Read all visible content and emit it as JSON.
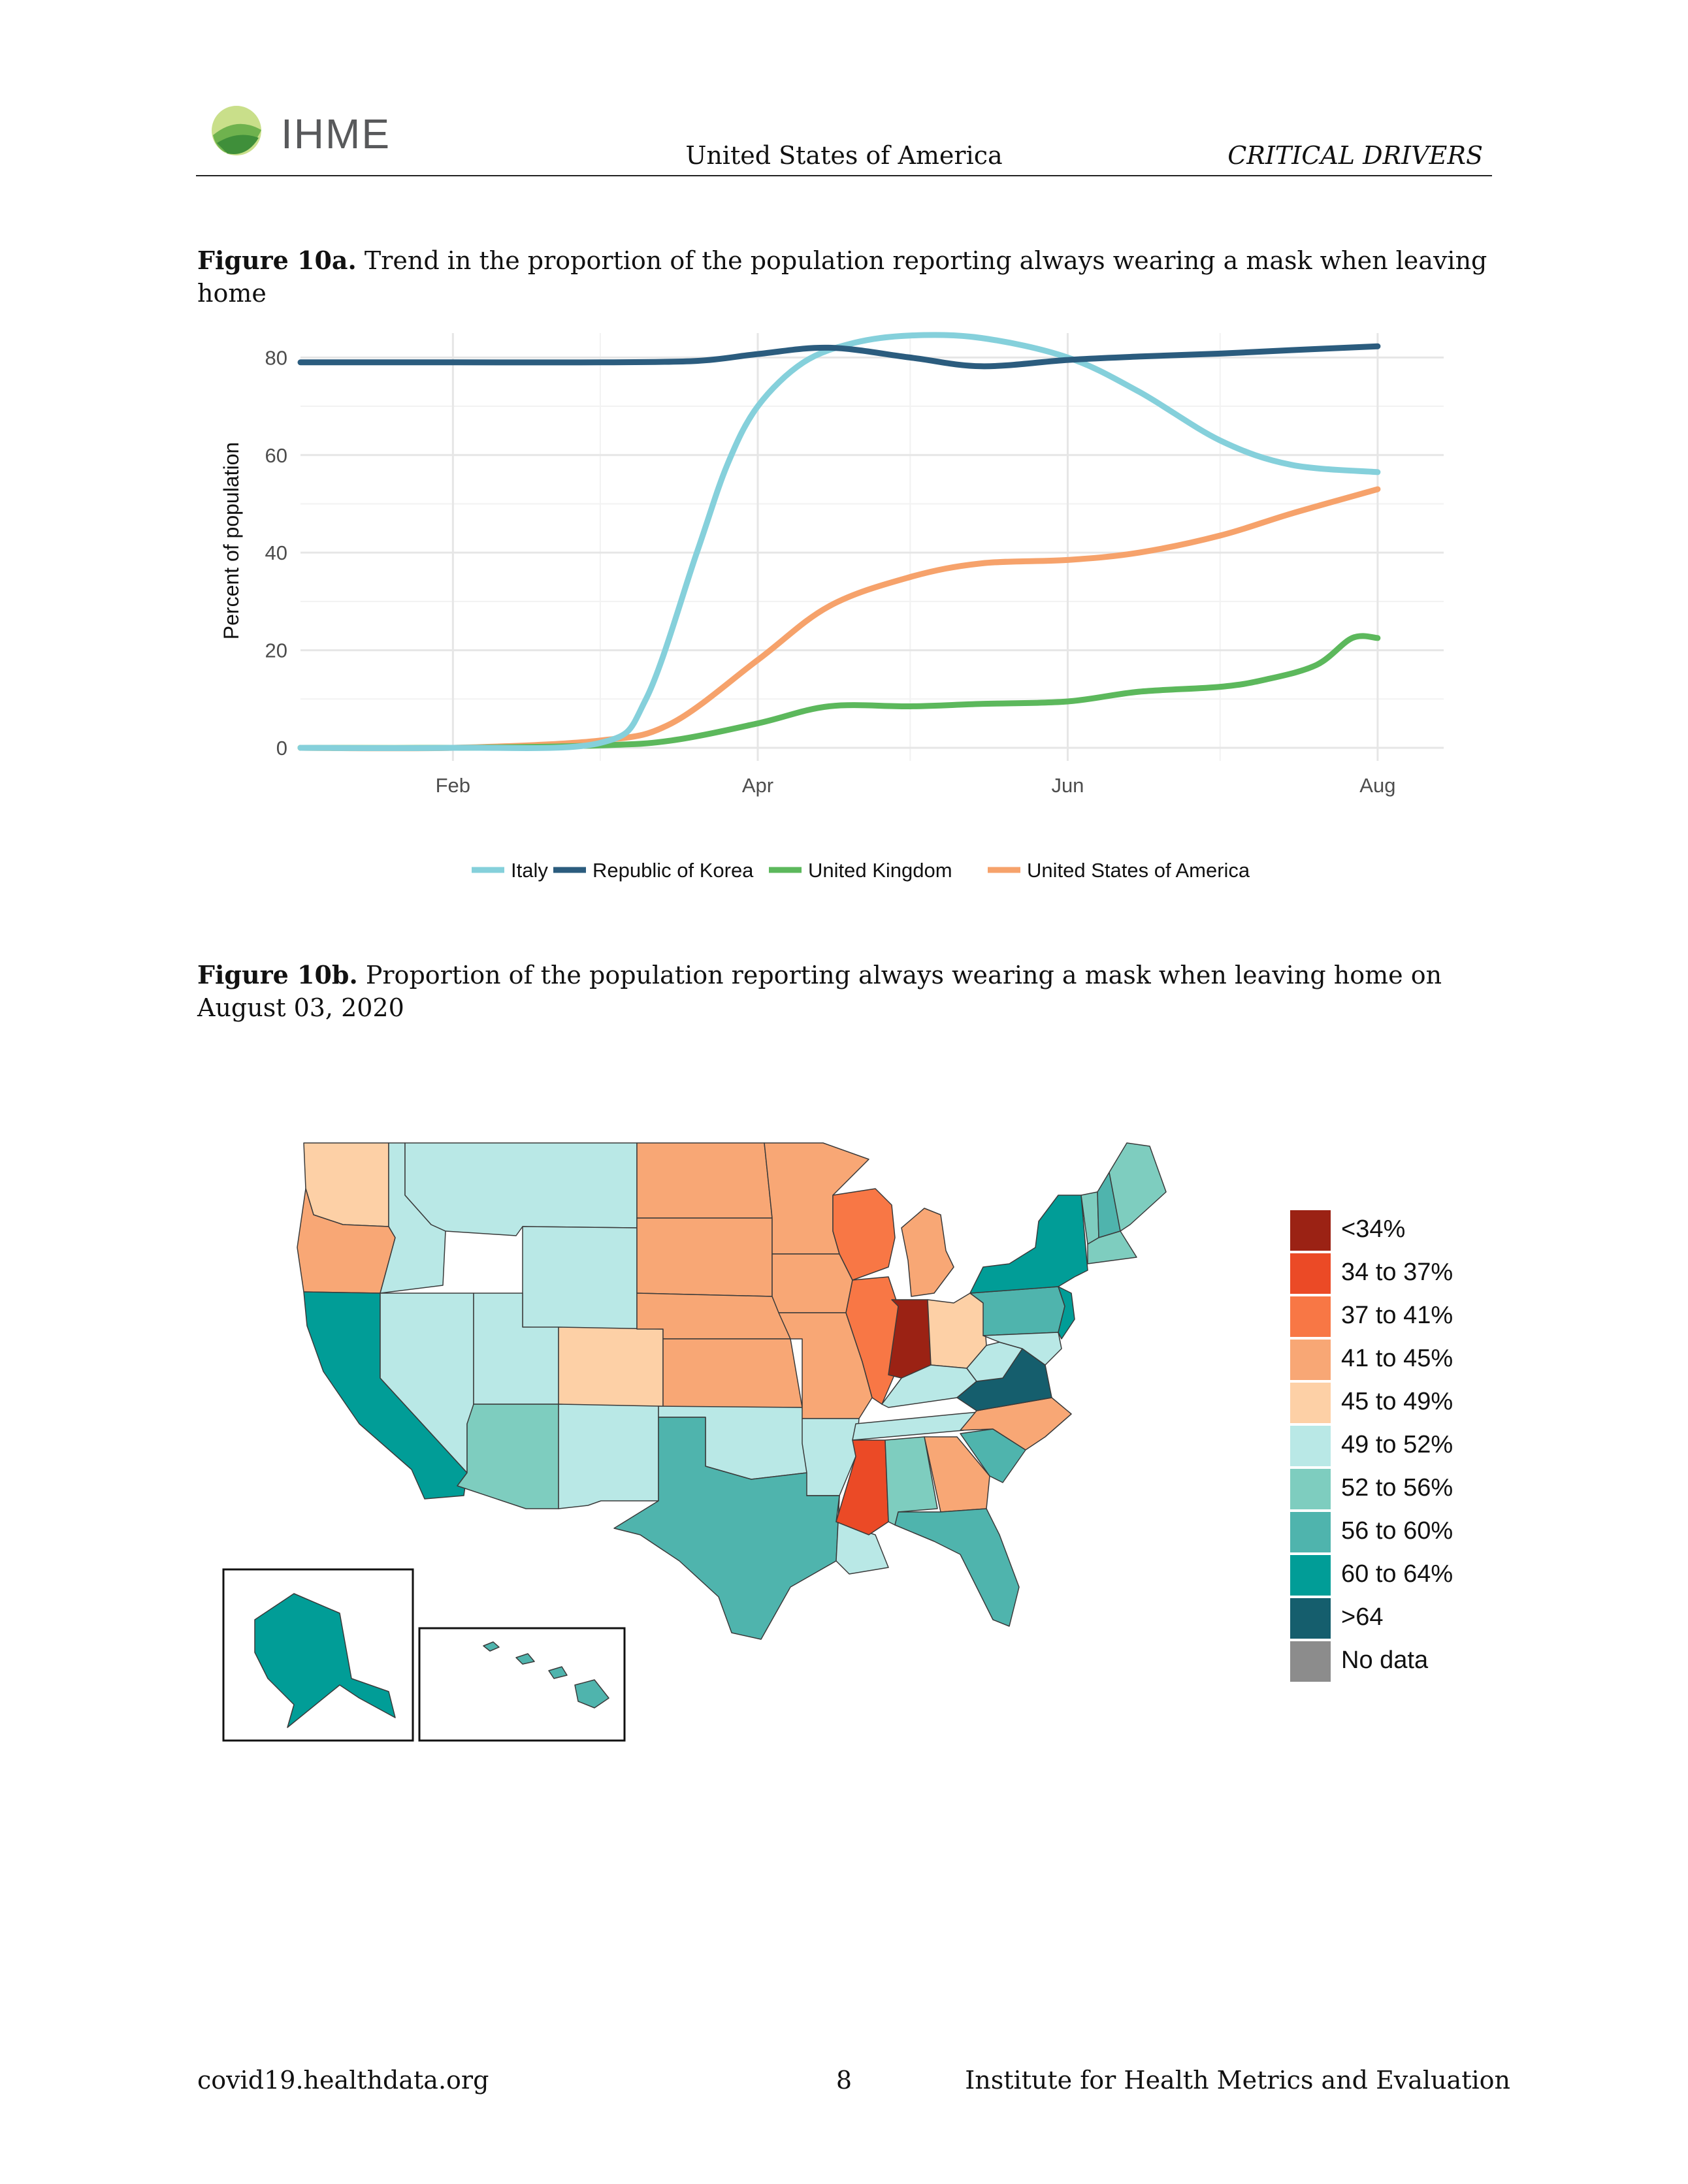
{
  "header": {
    "logo_text": "IHME",
    "country": "United States of America",
    "section": "CRITICAL DRIVERS"
  },
  "figure_a": {
    "label": "Figure 10a.",
    "text": "Trend in the proportion of the population reporting always wearing a mask when leaving home"
  },
  "figure_b": {
    "label": "Figure 10b.",
    "text": "Proportion of the population reporting always wearing a mask when leaving home on August 03, 2020"
  },
  "chart_data": [
    {
      "type": "line",
      "title": "",
      "xlabel": "",
      "ylabel": "Percent of population",
      "ylim": [
        0,
        85
      ],
      "yticks": [
        0,
        20,
        40,
        60,
        80
      ],
      "xticks": [
        {
          "x": "2020-02-01",
          "label": "Feb"
        },
        {
          "x": "2020-04-01",
          "label": "Apr"
        },
        {
          "x": "2020-06-01",
          "label": "Jun"
        },
        {
          "x": "2020-08-01",
          "label": "Aug"
        }
      ],
      "xlim": [
        "2020-01-02",
        "2020-08-14"
      ],
      "grid": true,
      "legend_position": "bottom",
      "series": [
        {
          "name": "Italy",
          "color": "#85d0db",
          "x": [
            "2020-01-02",
            "2020-02-01",
            "2020-03-01",
            "2020-03-10",
            "2020-03-20",
            "2020-03-26",
            "2020-04-01",
            "2020-04-10",
            "2020-04-20",
            "2020-05-01",
            "2020-05-15",
            "2020-06-01",
            "2020-06-15",
            "2020-07-01",
            "2020-07-15",
            "2020-08-01"
          ],
          "y": [
            0,
            0,
            1,
            10,
            40,
            58,
            70,
            79,
            83,
            84.5,
            84,
            80,
            73,
            63,
            58,
            56.5
          ]
        },
        {
          "name": "Republic of Korea",
          "color": "#2b5c7e",
          "x": [
            "2020-01-02",
            "2020-02-01",
            "2020-03-01",
            "2020-03-20",
            "2020-04-01",
            "2020-04-15",
            "2020-05-01",
            "2020-05-15",
            "2020-06-01",
            "2020-06-15",
            "2020-07-01",
            "2020-07-15",
            "2020-08-01"
          ],
          "y": [
            79,
            79,
            79,
            79.3,
            80.7,
            82,
            80,
            78.2,
            79.5,
            80.2,
            80.8,
            81.5,
            82.3
          ]
        },
        {
          "name": "United Kingdom",
          "color": "#5cb85c",
          "x": [
            "2020-01-02",
            "2020-02-01",
            "2020-03-01",
            "2020-03-15",
            "2020-04-01",
            "2020-04-15",
            "2020-05-01",
            "2020-05-15",
            "2020-06-01",
            "2020-06-15",
            "2020-07-01",
            "2020-07-10",
            "2020-07-20",
            "2020-07-27",
            "2020-08-01"
          ],
          "y": [
            0,
            0,
            0.5,
            1.5,
            5,
            8.5,
            8.5,
            9,
            9.5,
            11.5,
            12.5,
            14,
            17,
            22.5,
            22.5
          ]
        },
        {
          "name": "United States of America",
          "color": "#f6a26b",
          "x": [
            "2020-01-02",
            "2020-02-01",
            "2020-03-01",
            "2020-03-15",
            "2020-04-01",
            "2020-04-15",
            "2020-05-01",
            "2020-05-15",
            "2020-06-01",
            "2020-06-15",
            "2020-07-01",
            "2020-07-15",
            "2020-08-01"
          ],
          "y": [
            0,
            0,
            1.5,
            5,
            18,
            29,
            35,
            37.8,
            38.5,
            40,
            43.5,
            48,
            53
          ]
        }
      ]
    },
    {
      "type": "choropleth",
      "title": "",
      "legend_position": "right",
      "legend": [
        {
          "label": "<34%",
          "color": "#9b2214"
        },
        {
          "label": "34 to 37%",
          "color": "#eb4a26"
        },
        {
          "label": "37 to 41%",
          "color": "#f87745"
        },
        {
          "label": "41 to 45%",
          "color": "#f8a775"
        },
        {
          "label": "45 to 49%",
          "color": "#fdd0a6"
        },
        {
          "label": "49 to 52%",
          "color": "#b9e8e6"
        },
        {
          "label": "52 to 56%",
          "color": "#7ecdbf"
        },
        {
          "label": "56 to 60%",
          "color": "#4fb4ad"
        },
        {
          "label": "60 to 64%",
          "color": "#019d97"
        },
        {
          "label": ">64",
          "color": "#155e6d"
        },
        {
          "label": "No data",
          "color": "#8c8c8c"
        }
      ],
      "regions": [
        {
          "name": "Washington",
          "bin": "45 to 49%"
        },
        {
          "name": "Oregon",
          "bin": "41 to 45%"
        },
        {
          "name": "California",
          "bin": "60 to 64%"
        },
        {
          "name": "Idaho",
          "bin": "49 to 52%"
        },
        {
          "name": "Montana",
          "bin": "49 to 52%"
        },
        {
          "name": "Wyoming",
          "bin": "49 to 52%"
        },
        {
          "name": "Nevada",
          "bin": "49 to 52%"
        },
        {
          "name": "Utah",
          "bin": "49 to 52%"
        },
        {
          "name": "Colorado",
          "bin": "45 to 49%"
        },
        {
          "name": "Arizona",
          "bin": "52 to 56%"
        },
        {
          "name": "New Mexico",
          "bin": "49 to 52%"
        },
        {
          "name": "North Dakota",
          "bin": "41 to 45%"
        },
        {
          "name": "South Dakota",
          "bin": "41 to 45%"
        },
        {
          "name": "Nebraska",
          "bin": "41 to 45%"
        },
        {
          "name": "Kansas",
          "bin": "41 to 45%"
        },
        {
          "name": "Oklahoma",
          "bin": "49 to 52%"
        },
        {
          "name": "Texas",
          "bin": "56 to 60%"
        },
        {
          "name": "Minnesota",
          "bin": "41 to 45%"
        },
        {
          "name": "Iowa",
          "bin": "41 to 45%"
        },
        {
          "name": "Missouri",
          "bin": "41 to 45%"
        },
        {
          "name": "Arkansas",
          "bin": "49 to 52%"
        },
        {
          "name": "Louisiana",
          "bin": "49 to 52%"
        },
        {
          "name": "Wisconsin",
          "bin": "37 to 41%"
        },
        {
          "name": "Illinois",
          "bin": "37 to 41%"
        },
        {
          "name": "Michigan",
          "bin": "41 to 45%"
        },
        {
          "name": "Indiana",
          "bin": "<34%"
        },
        {
          "name": "Ohio",
          "bin": "45 to 49%"
        },
        {
          "name": "Kentucky",
          "bin": "49 to 52%"
        },
        {
          "name": "Tennessee",
          "bin": "49 to 52%"
        },
        {
          "name": "Mississippi",
          "bin": "34 to 37%"
        },
        {
          "name": "Alabama",
          "bin": "52 to 56%"
        },
        {
          "name": "Georgia",
          "bin": "41 to 45%"
        },
        {
          "name": "Florida",
          "bin": "56 to 60%"
        },
        {
          "name": "South Carolina",
          "bin": "56 to 60%"
        },
        {
          "name": "North Carolina",
          "bin": "41 to 45%"
        },
        {
          "name": "Virginia",
          "bin": ">64"
        },
        {
          "name": "West Virginia",
          "bin": "49 to 52%"
        },
        {
          "name": "Pennsylvania",
          "bin": "56 to 60%"
        },
        {
          "name": "New York",
          "bin": "60 to 64%"
        },
        {
          "name": "New Jersey",
          "bin": "60 to 64%"
        },
        {
          "name": "Maryland",
          "bin": "49 to 52%"
        },
        {
          "name": "Vermont",
          "bin": "52 to 56%"
        },
        {
          "name": "New Hampshire",
          "bin": "56 to 60%"
        },
        {
          "name": "Maine",
          "bin": "52 to 56%"
        },
        {
          "name": "Massachusetts",
          "bin": "52 to 56%"
        },
        {
          "name": "Alaska",
          "bin": "60 to 64%"
        },
        {
          "name": "Hawaii",
          "bin": "56 to 60%"
        }
      ]
    }
  ],
  "footer": {
    "website": "covid19.healthdata.org",
    "page": "8",
    "org": "Institute for Health Metrics and Evaluation"
  }
}
